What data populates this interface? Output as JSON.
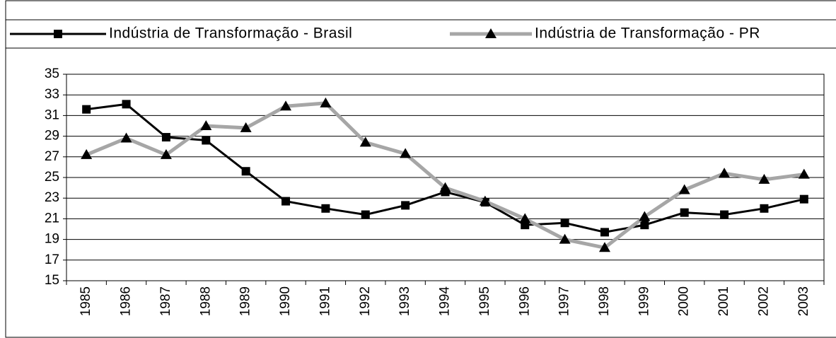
{
  "chart_data": {
    "type": "line",
    "categories": [
      "1985",
      "1986",
      "1987",
      "1988",
      "1989",
      "1990",
      "1991",
      "1992",
      "1993",
      "1994",
      "1995",
      "1996",
      "1997",
      "1998",
      "1999",
      "2000",
      "2001",
      "2002",
      "2003"
    ],
    "series": [
      {
        "name": "Indústria de Transformação - Brasil",
        "color": "#000000",
        "marker": "square",
        "values": [
          31.6,
          32.1,
          28.9,
          28.6,
          25.6,
          22.7,
          22.0,
          21.4,
          22.3,
          23.6,
          22.6,
          20.4,
          20.6,
          19.7,
          20.4,
          21.6,
          21.4,
          22.0,
          22.9
        ]
      },
      {
        "name": "Indústria de Transformação - PR",
        "color": "#a6a6a6",
        "marker": "triangle",
        "values": [
          27.2,
          28.8,
          27.2,
          30.0,
          29.8,
          31.9,
          32.2,
          28.4,
          27.3,
          24.0,
          22.7,
          21.0,
          19.0,
          18.2,
          21.2,
          23.8,
          25.4,
          24.8,
          25.3
        ]
      }
    ],
    "ylim": [
      15,
      35
    ],
    "yticks": [
      15,
      17,
      19,
      21,
      23,
      25,
      27,
      29,
      31,
      33,
      35
    ],
    "grid": true
  }
}
